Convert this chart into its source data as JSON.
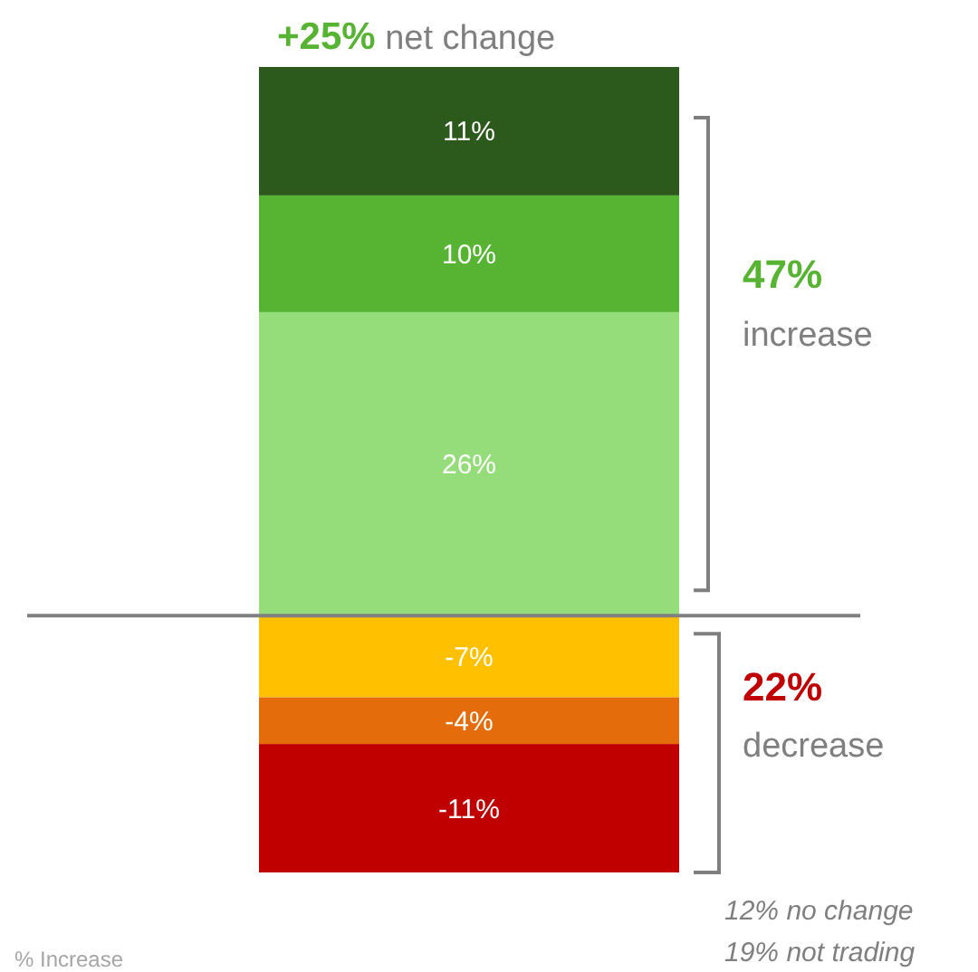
{
  "chart_data": {
    "type": "bar",
    "title": "+25% net change",
    "stacked": true,
    "categories": [
      null
    ],
    "ylim": [
      -22,
      47
    ],
    "series": [
      {
        "color": "#95dc7a",
        "values": [
          26
        ],
        "value_labels": [
          "26%"
        ]
      },
      {
        "color": "#56b432",
        "values": [
          10
        ],
        "value_labels": [
          "10%"
        ]
      },
      {
        "color": "#2c5a1c",
        "values": [
          11
        ],
        "value_labels": [
          "11%"
        ]
      },
      {
        "color": "#ffc000",
        "values": [
          -7
        ],
        "value_labels": [
          "-7%"
        ]
      },
      {
        "color": "#e46c0a",
        "values": [
          -4
        ],
        "value_labels": [
          "-4%"
        ]
      },
      {
        "color": "#c00000",
        "values": [
          -11
        ],
        "value_labels": [
          "-11%"
        ]
      }
    ],
    "ref_lines": [
      {
        "axis": "y",
        "value": 0,
        "color": "#808080"
      }
    ],
    "annotations": [
      "47%",
      "increase",
      "22%",
      "decrease",
      "12% no change",
      "19% not trading",
      "% Increase"
    ]
  }
}
